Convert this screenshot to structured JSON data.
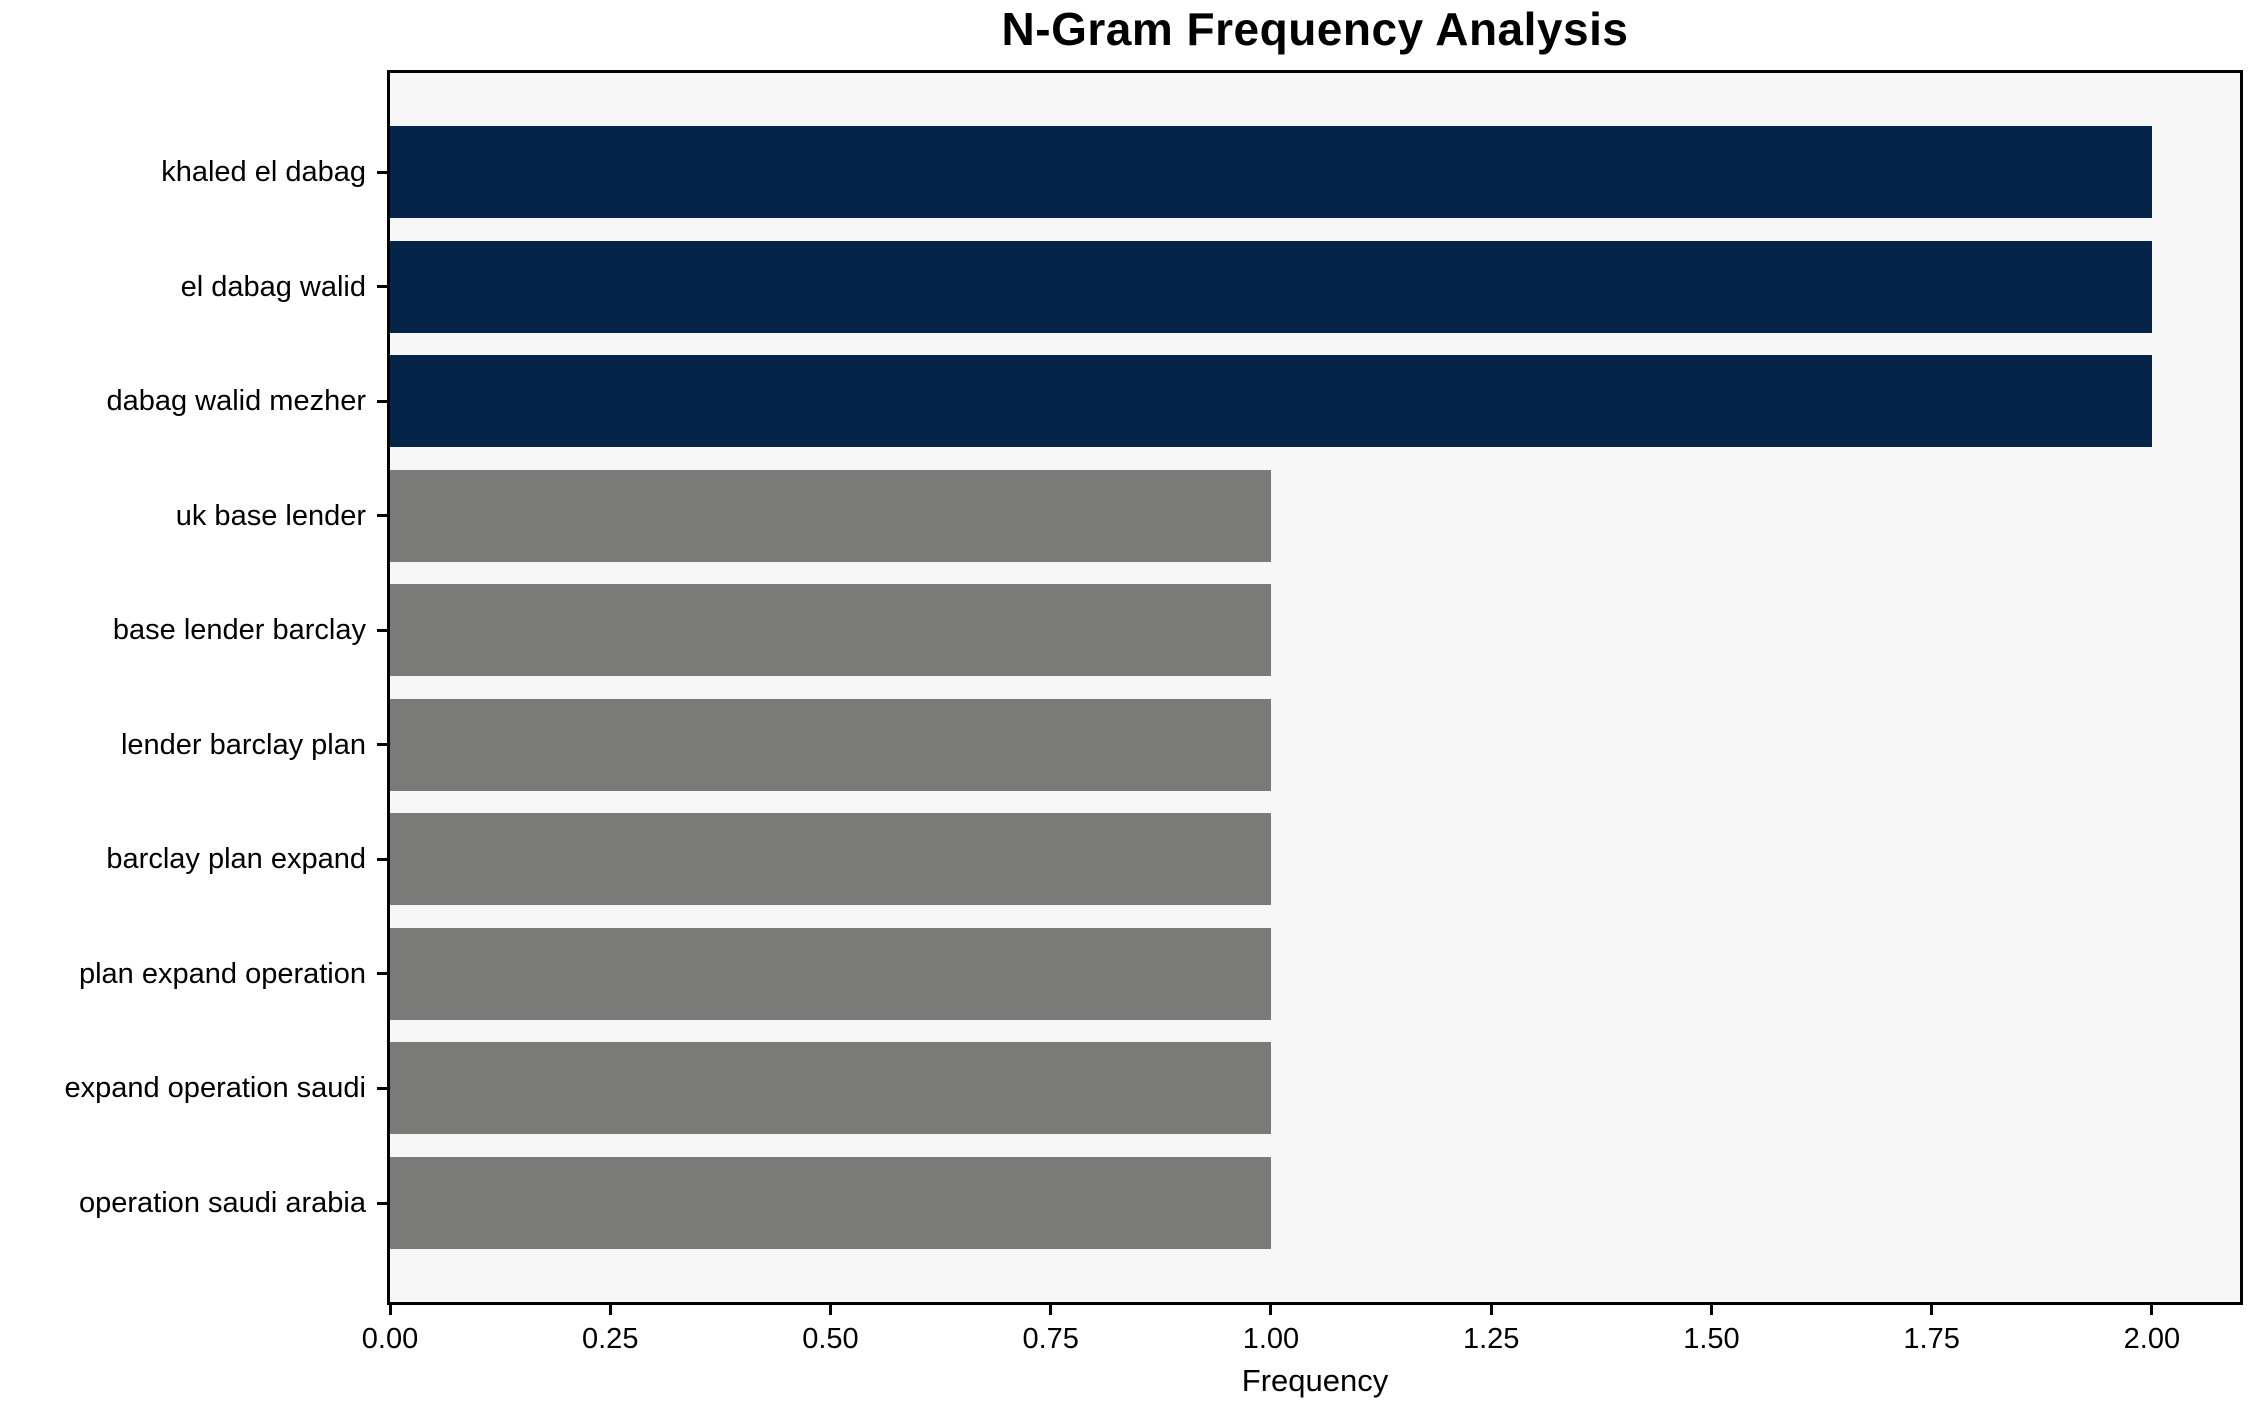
{
  "chart_data": {
    "type": "bar",
    "orientation": "horizontal",
    "title": "N-Gram Frequency Analysis",
    "categories": [
      "khaled el dabag",
      "el dabag walid",
      "dabag walid mezher",
      "uk base lender",
      "base lender barclay",
      "lender barclay plan",
      "barclay plan expand",
      "plan expand operation",
      "expand operation saudi",
      "operation saudi arabia"
    ],
    "values": [
      2,
      2,
      2,
      1,
      1,
      1,
      1,
      1,
      1,
      1
    ],
    "bar_colors": [
      "#062449",
      "#062449",
      "#062449",
      "#7a7a78",
      "#7a7a78",
      "#7a7a78",
      "#7a7a78",
      "#7a7a78",
      "#7a7a78",
      "#7a7a78"
    ],
    "xlabel": "Frequency",
    "ylabel": "",
    "xlim": [
      0,
      2.1
    ],
    "xticks": [
      0,
      0.25,
      0.5,
      0.75,
      1,
      1.25,
      1.5,
      1.75,
      2
    ],
    "xtick_labels": [
      "0.00",
      "0.25",
      "0.50",
      "0.75",
      "1.00",
      "1.25",
      "1.50",
      "1.75",
      "2.00"
    ],
    "grid": false,
    "legend": null,
    "plot_background": "#f7f7f7",
    "figure_background": "#ffffff",
    "axis_color": "#000000",
    "highlight_color": "#062449",
    "default_color": "#7a7a78"
  }
}
